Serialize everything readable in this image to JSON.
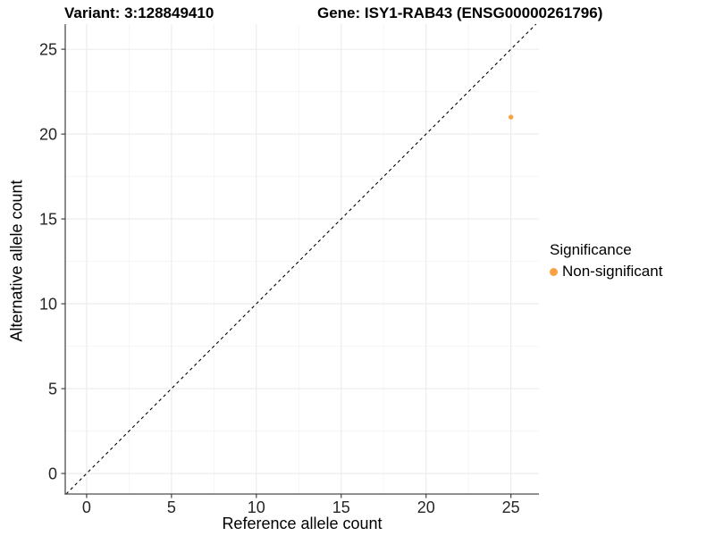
{
  "figure": {
    "title_left": "Variant: 3:128849410",
    "title_right": "Gene: ISY1-RAB43 (ENSG00000261796)"
  },
  "legend": {
    "title": "Significance",
    "items": [
      {
        "label": "Non-significant",
        "color": "#F9A242"
      }
    ]
  },
  "chart_data": {
    "type": "scatter",
    "title": "",
    "xlabel": "Reference allele count",
    "ylabel": "Alternative allele count",
    "xlim": [
      -1.26,
      26.65
    ],
    "ylim": [
      -1.21,
      26.48
    ],
    "x_ticks": [
      0,
      5,
      10,
      15,
      20,
      25
    ],
    "y_ticks": [
      0,
      5,
      10,
      15,
      20,
      25
    ],
    "x_minor_ticks": [
      2.5,
      7.5,
      12.5,
      17.5,
      22.5
    ],
    "y_minor_ticks": [
      2.5,
      7.5,
      12.5,
      17.5,
      22.5
    ],
    "grid": true,
    "legend_position": "right",
    "series": [
      {
        "name": "Non-significant",
        "color": "#F9A242",
        "point_radius": 2.7,
        "points": [
          {
            "x": 25,
            "y": 21
          }
        ]
      }
    ],
    "reference_line": {
      "kind": "identity",
      "dash": "dashed",
      "color": "#000000"
    }
  },
  "style": {
    "grid_major_color": "#ebebeb",
    "grid_minor_color": "#f4f4f4",
    "axis_line_color": "#4d4d4d",
    "tick_color": "#333333"
  }
}
